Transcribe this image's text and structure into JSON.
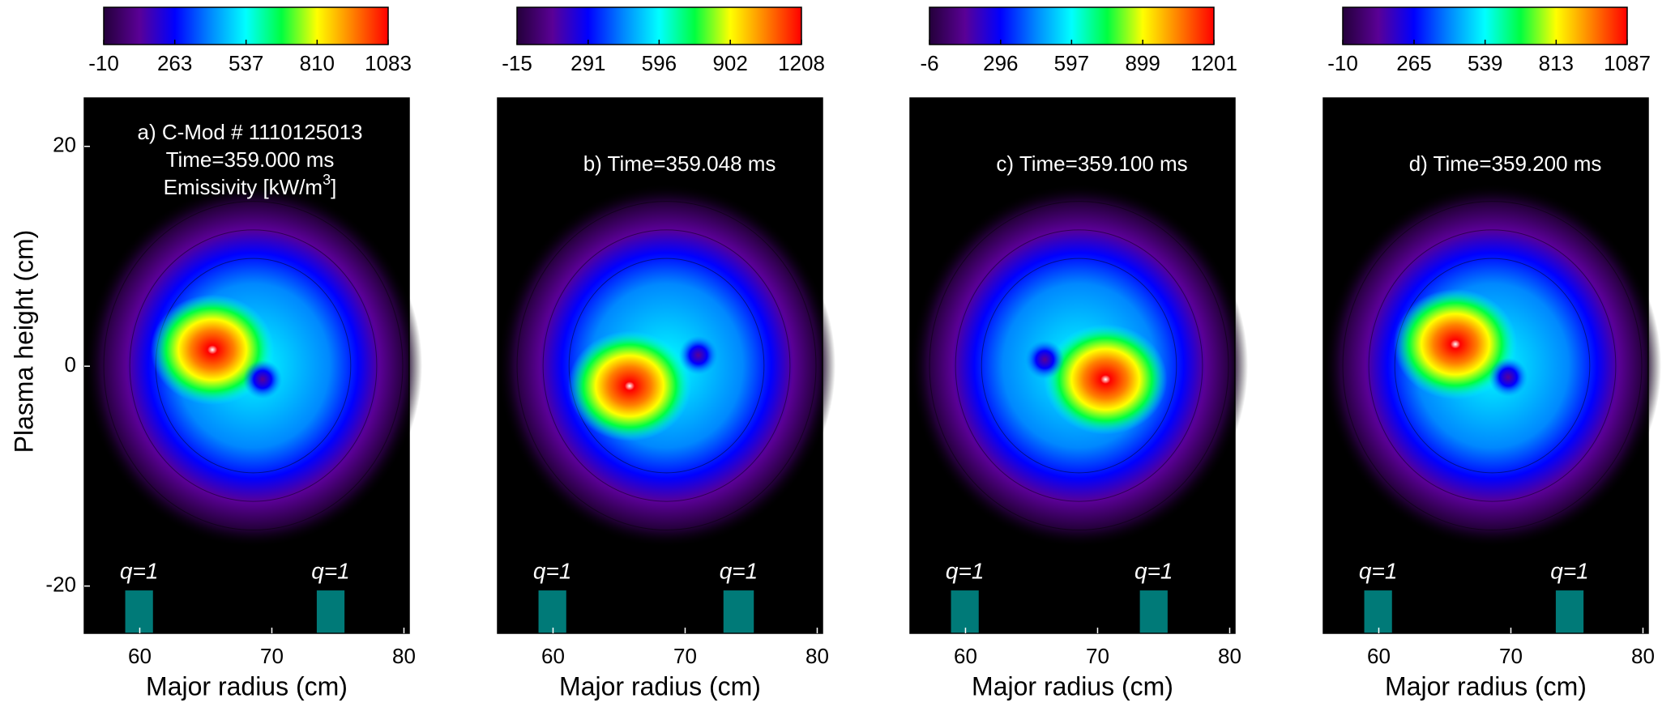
{
  "chart_data": [
    {
      "type": "contour",
      "ylabel": "Plasma height (cm)",
      "xlabel": "Major radius (cm)",
      "annotation": [
        "a) C-Mod # 1110125013",
        "Time=359.000 ms",
        {
          "text": "Emissivity [kW/m",
          "sup": "3",
          "tail": "]"
        }
      ],
      "xlim": [
        55.8,
        80.4
      ],
      "xticks": [
        60,
        70,
        80
      ],
      "ylim": [
        -24.3,
        24.4
      ],
      "yticks": [
        -20,
        0,
        20
      ],
      "clim": [
        -10,
        1083
      ],
      "cticks": [
        -10,
        263,
        537,
        810,
        1083
      ],
      "colormap": [
        "#24003a",
        "#5a0096",
        "#0000ff",
        "#0088ff",
        "#00ffff",
        "#00ff40",
        "#ffff00",
        "#ff8000",
        "#ff0000"
      ],
      "hot_spot": [
        65.5,
        1.5
      ],
      "cold_spot": [
        69.3,
        -1.2
      ],
      "q1_bands": [
        {
          "label": "q=1",
          "x": [
            58.9,
            61.0
          ],
          "top": -20.4
        },
        {
          "label": "q=1",
          "x": [
            73.4,
            75.5
          ],
          "top": -20.4
        }
      ]
    },
    {
      "type": "contour",
      "xlabel": "Major radius (cm)",
      "annotation": [
        "b) Time=359.048 ms"
      ],
      "xlim": [
        55.8,
        80.4
      ],
      "xticks": [
        60,
        70,
        80
      ],
      "ylim": [
        -24.3,
        24.4
      ],
      "clim": [
        -15,
        1208
      ],
      "cticks": [
        -15,
        291,
        596,
        902,
        1208
      ],
      "colormap": [
        "#24003a",
        "#5a0096",
        "#0000ff",
        "#0088ff",
        "#00ffff",
        "#00ff40",
        "#ffff00",
        "#ff8000",
        "#ff0000"
      ],
      "hot_spot": [
        65.8,
        -1.8
      ],
      "cold_spot": [
        71.0,
        1.0
      ],
      "q1_bands": [
        {
          "label": "q=1",
          "x": [
            58.9,
            61.0
          ],
          "top": -20.4
        },
        {
          "label": "q=1",
          "x": [
            72.9,
            75.2
          ],
          "top": -20.4
        }
      ]
    },
    {
      "type": "contour",
      "xlabel": "Major radius (cm)",
      "annotation": [
        "c) Time=359.100 ms"
      ],
      "xlim": [
        55.8,
        80.4
      ],
      "xticks": [
        60,
        70,
        80
      ],
      "ylim": [
        -24.3,
        24.4
      ],
      "clim": [
        -6,
        1201
      ],
      "cticks": [
        -6,
        296,
        597,
        899,
        1201
      ],
      "colormap": [
        "#24003a",
        "#5a0096",
        "#0000ff",
        "#0088ff",
        "#00ffff",
        "#00ff40",
        "#ffff00",
        "#ff8000",
        "#ff0000"
      ],
      "hot_spot": [
        70.6,
        -1.2
      ],
      "cold_spot": [
        66.0,
        0.6
      ],
      "q1_bands": [
        {
          "label": "q=1",
          "x": [
            58.9,
            61.0
          ],
          "top": -20.4
        },
        {
          "label": "q=1",
          "x": [
            73.2,
            75.3
          ],
          "top": -20.4
        }
      ]
    },
    {
      "type": "contour",
      "xlabel": "Major radius (cm)",
      "annotation": [
        "d) Time=359.200 ms"
      ],
      "xlim": [
        55.8,
        80.4
      ],
      "xticks": [
        60,
        70,
        80
      ],
      "ylim": [
        -24.3,
        24.4
      ],
      "clim": [
        -10,
        1087
      ],
      "cticks": [
        -10,
        265,
        539,
        813,
        1087
      ],
      "colormap": [
        "#24003a",
        "#5a0096",
        "#0000ff",
        "#0088ff",
        "#00ffff",
        "#00ff40",
        "#ffff00",
        "#ff8000",
        "#ff0000"
      ],
      "hot_spot": [
        65.8,
        2.0
      ],
      "cold_spot": [
        69.8,
        -1.0
      ],
      "q1_bands": [
        {
          "label": "q=1",
          "x": [
            58.9,
            61.0
          ],
          "top": -20.4
        },
        {
          "label": "q=1",
          "x": [
            73.4,
            75.5
          ],
          "top": -20.4
        }
      ]
    }
  ]
}
